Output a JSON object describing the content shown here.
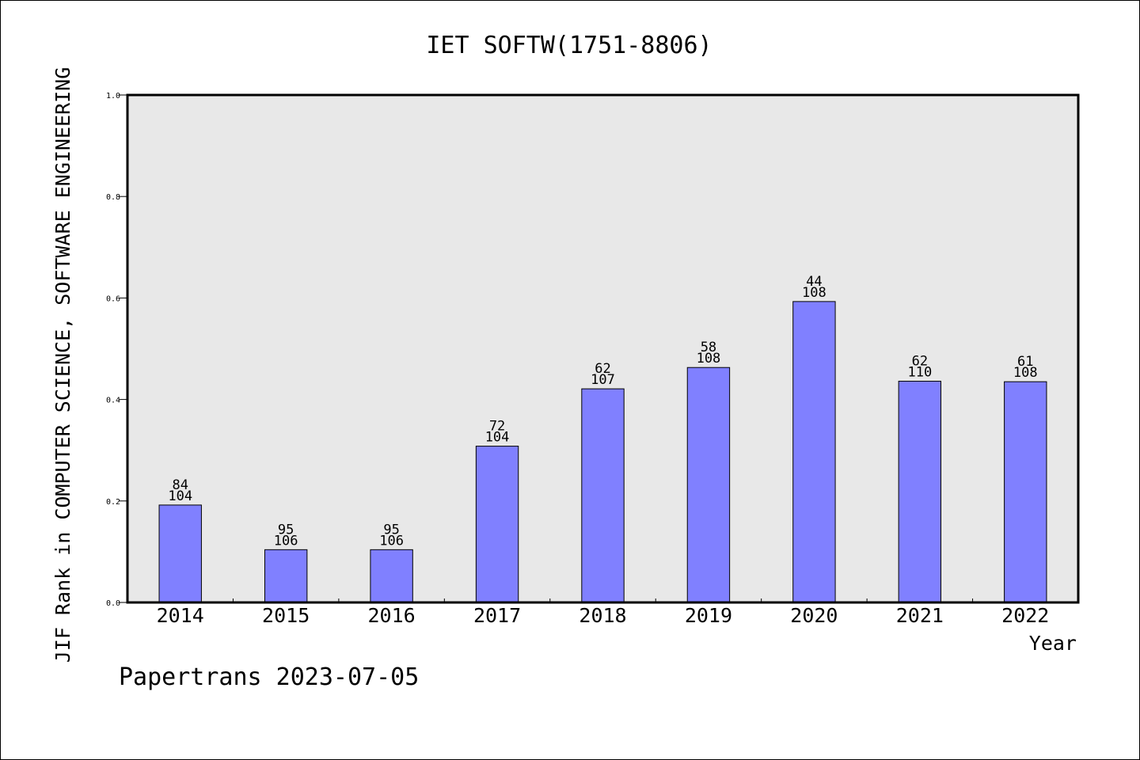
{
  "chart_data": {
    "type": "bar",
    "title": "IET SOFTW(1751-8806)",
    "xlabel": "Year",
    "ylabel": "JIF Rank in COMPUTER SCIENCE, SOFTWARE ENGINEERING",
    "ylim": [
      0,
      1.0
    ],
    "yticks": [
      "0.0",
      "0.2",
      "0.4",
      "0.6",
      "0.8",
      "1.0"
    ],
    "categories": [
      "2014",
      "2015",
      "2016",
      "2017",
      "2018",
      "2019",
      "2020",
      "2021",
      "2022"
    ],
    "values": [
      0.192,
      0.104,
      0.104,
      0.308,
      0.421,
      0.463,
      0.593,
      0.436,
      0.435
    ],
    "rank": [
      "84",
      "95",
      "95",
      "72",
      "62",
      "58",
      "44",
      "62",
      "61"
    ],
    "total": [
      "104",
      "106",
      "106",
      "104",
      "107",
      "108",
      "108",
      "110",
      "108"
    ],
    "grid": false,
    "plot_background": "#e8e8e8",
    "bar_color": "#8080ff"
  },
  "footer": {
    "credit": "Papertrans 2023-07-05"
  }
}
